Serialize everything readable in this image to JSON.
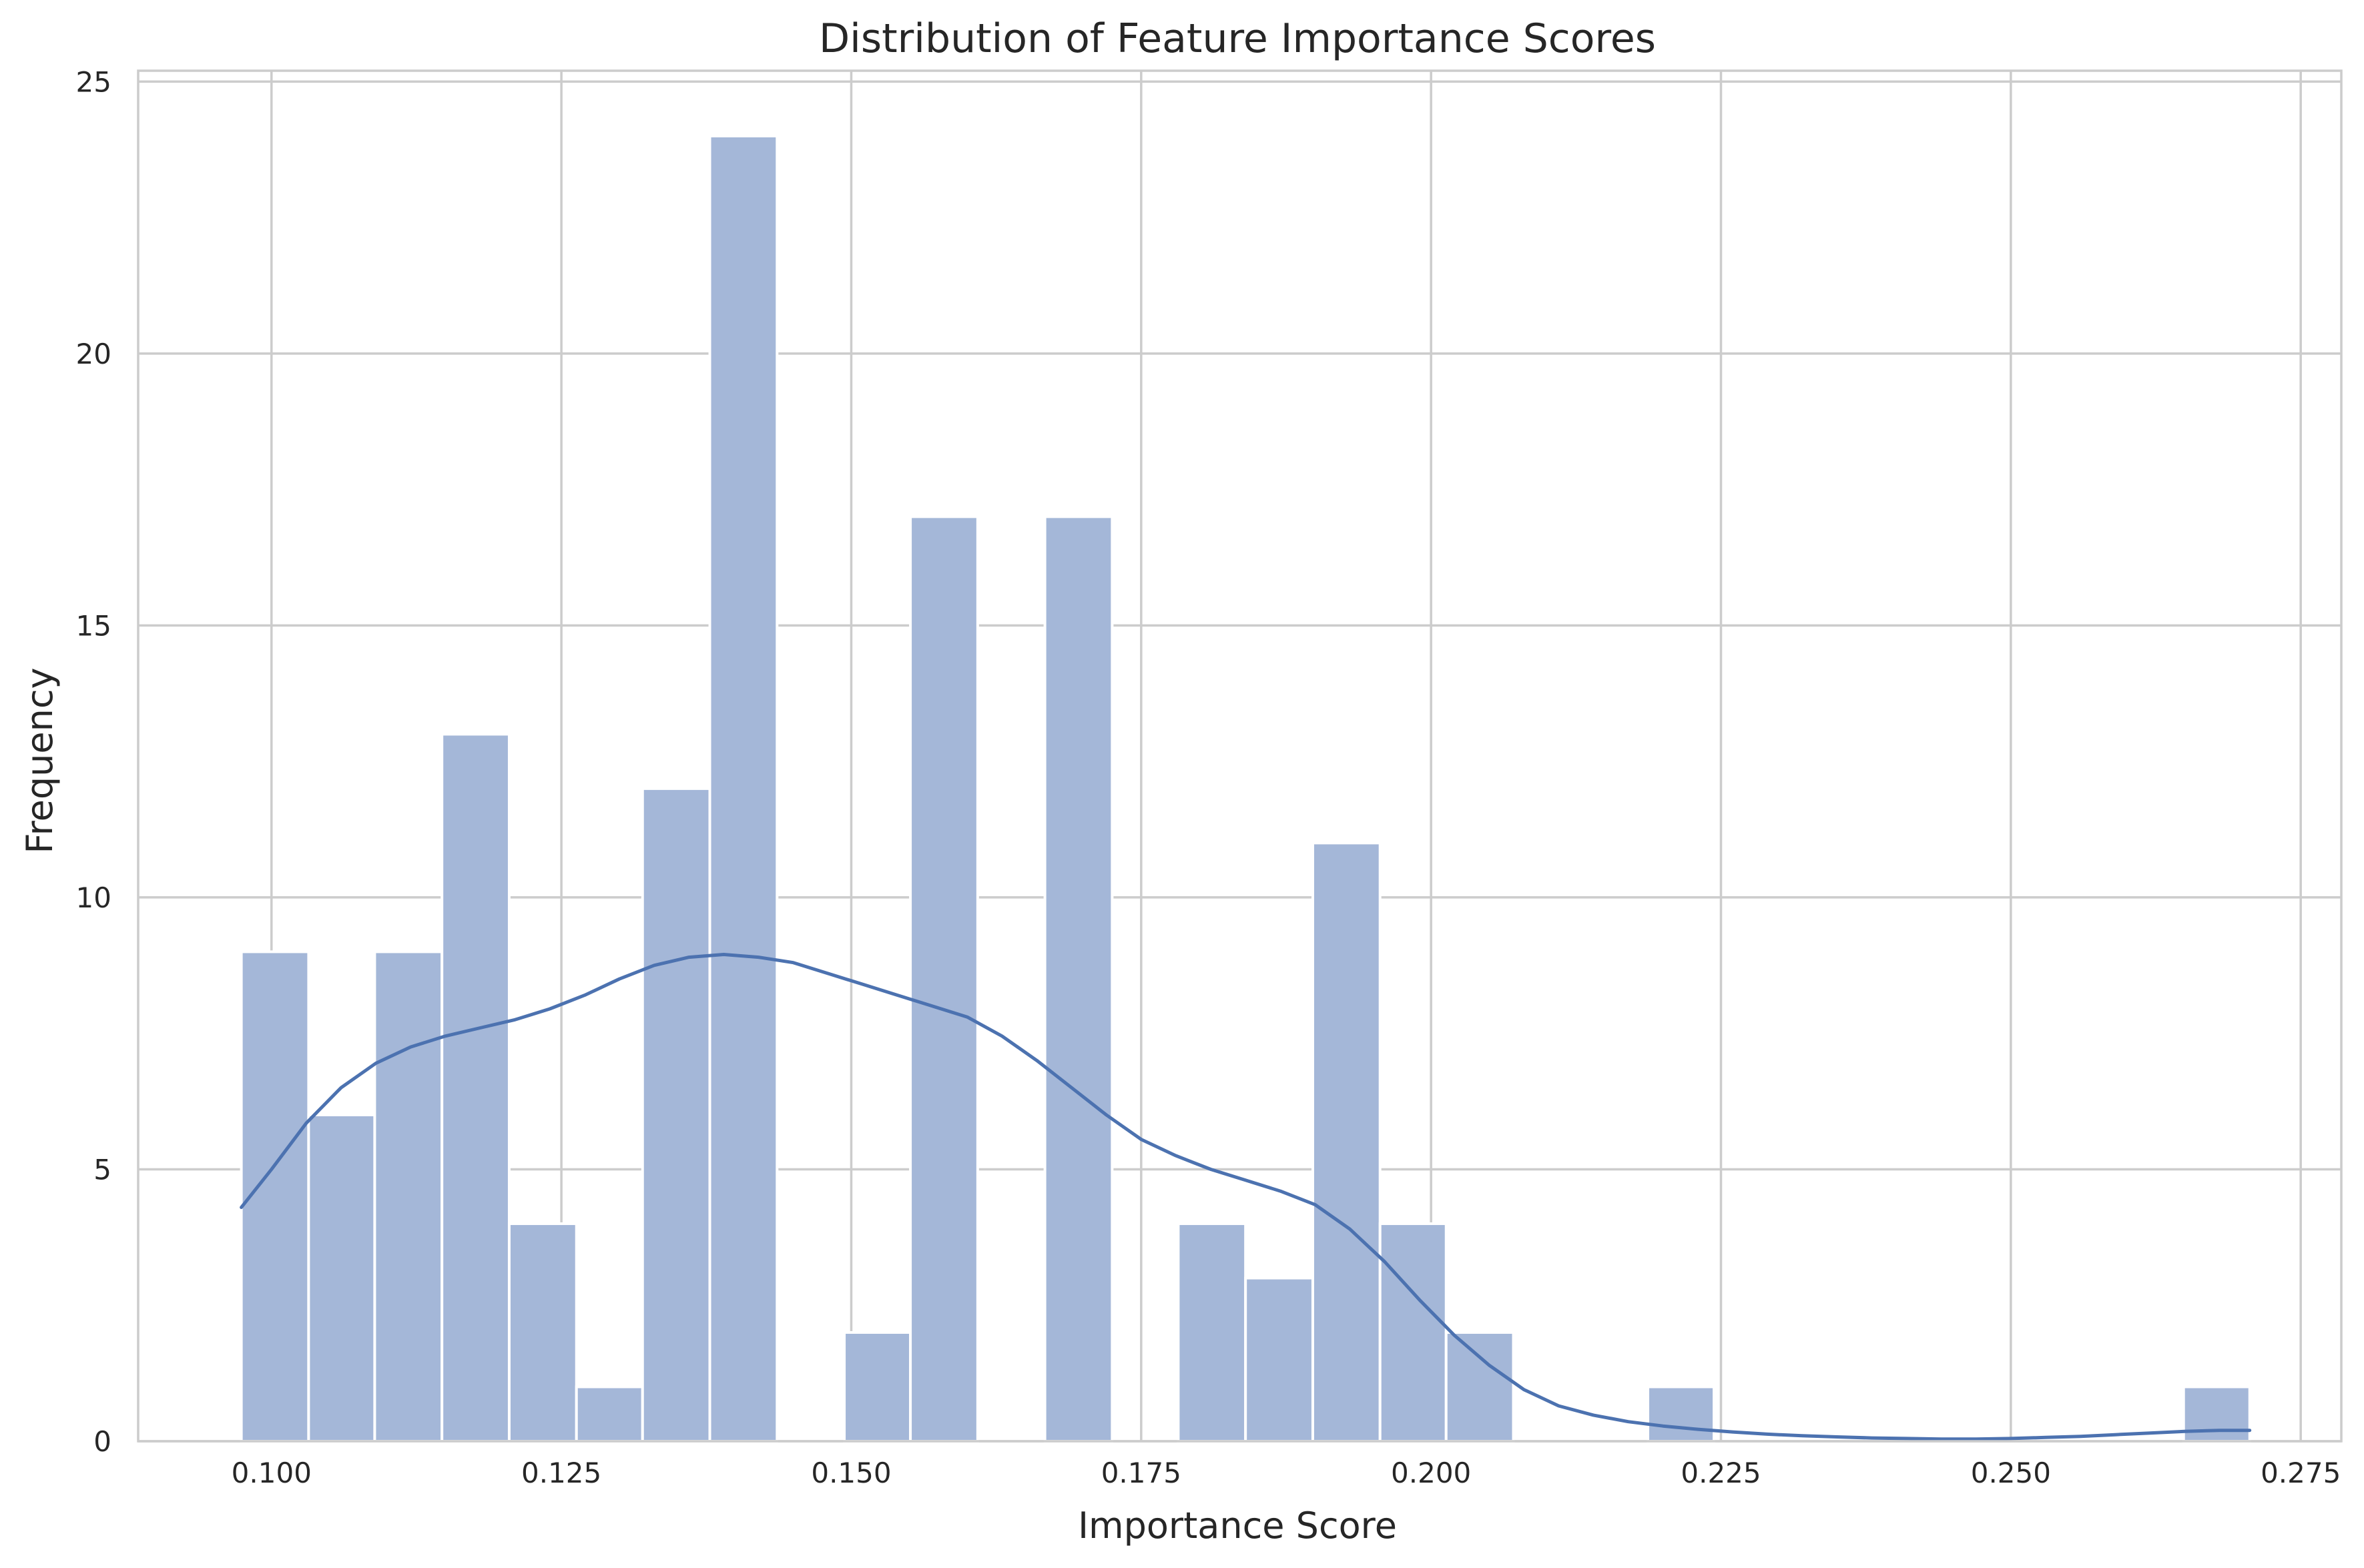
{
  "chart_data": {
    "type": "histogram",
    "title": "Distribution of Feature Importance Scores",
    "xlabel": "Importance Score",
    "ylabel": "Frequency",
    "xlim": [
      0.0885,
      0.2785
    ],
    "ylim": [
      0,
      25.2
    ],
    "x_ticks": [
      0.1,
      0.125,
      0.15,
      0.175,
      0.2,
      0.225,
      0.25,
      0.275
    ],
    "x_tick_labels": [
      "0.100",
      "0.125",
      "0.150",
      "0.175",
      "0.200",
      "0.225",
      "0.250",
      "0.275"
    ],
    "y_ticks": [
      0,
      5,
      10,
      15,
      20,
      25
    ],
    "y_tick_labels": [
      "0",
      "5",
      "10",
      "15",
      "20",
      "25"
    ],
    "grid": true,
    "bin_edges": [
      0.0974,
      0.1032,
      0.1089,
      0.1147,
      0.1205,
      0.1263,
      0.132,
      0.1378,
      0.1436,
      0.1494,
      0.1551,
      0.1609,
      0.1667,
      0.1725,
      0.1782,
      0.184,
      0.1898,
      0.1956,
      0.2013,
      0.2071,
      0.2129,
      0.2187,
      0.2244,
      0.2302,
      0.236,
      0.2418,
      0.2475,
      0.2533,
      0.2591,
      0.2649,
      0.2706
    ],
    "counts": [
      9,
      6,
      9,
      13,
      4,
      1,
      12,
      24,
      0,
      2,
      17,
      0,
      17,
      0,
      4,
      3,
      11,
      4,
      2,
      0,
      0,
      1,
      0,
      0,
      0,
      0,
      0,
      0,
      0,
      1
    ],
    "kde": {
      "x": [
        0.0974,
        0.1,
        0.103,
        0.106,
        0.109,
        0.112,
        0.115,
        0.118,
        0.121,
        0.124,
        0.127,
        0.13,
        0.133,
        0.136,
        0.139,
        0.142,
        0.145,
        0.148,
        0.151,
        0.154,
        0.157,
        0.16,
        0.163,
        0.166,
        0.169,
        0.172,
        0.175,
        0.178,
        0.181,
        0.184,
        0.187,
        0.19,
        0.193,
        0.196,
        0.199,
        0.202,
        0.205,
        0.208,
        0.211,
        0.214,
        0.217,
        0.22,
        0.223,
        0.226,
        0.229,
        0.232,
        0.235,
        0.238,
        0.241,
        0.244,
        0.247,
        0.25,
        0.253,
        0.256,
        0.259,
        0.262,
        0.265,
        0.268,
        0.2706
      ],
      "y": [
        4.3,
        5.0,
        5.85,
        6.5,
        6.95,
        7.25,
        7.45,
        7.6,
        7.75,
        7.95,
        8.2,
        8.5,
        8.75,
        8.9,
        8.95,
        8.9,
        8.8,
        8.6,
        8.4,
        8.2,
        8.0,
        7.8,
        7.45,
        7.0,
        6.5,
        6.0,
        5.55,
        5.25,
        5.0,
        4.8,
        4.6,
        4.35,
        3.9,
        3.3,
        2.6,
        1.95,
        1.4,
        0.95,
        0.65,
        0.48,
        0.36,
        0.28,
        0.22,
        0.17,
        0.13,
        0.1,
        0.08,
        0.06,
        0.05,
        0.04,
        0.04,
        0.05,
        0.07,
        0.09,
        0.12,
        0.15,
        0.18,
        0.2,
        0.2
      ]
    },
    "colors": {
      "bar_fill": "#a4b7d8",
      "bar_edge": "#ffffff",
      "kde_line": "#4c72b0"
    }
  }
}
